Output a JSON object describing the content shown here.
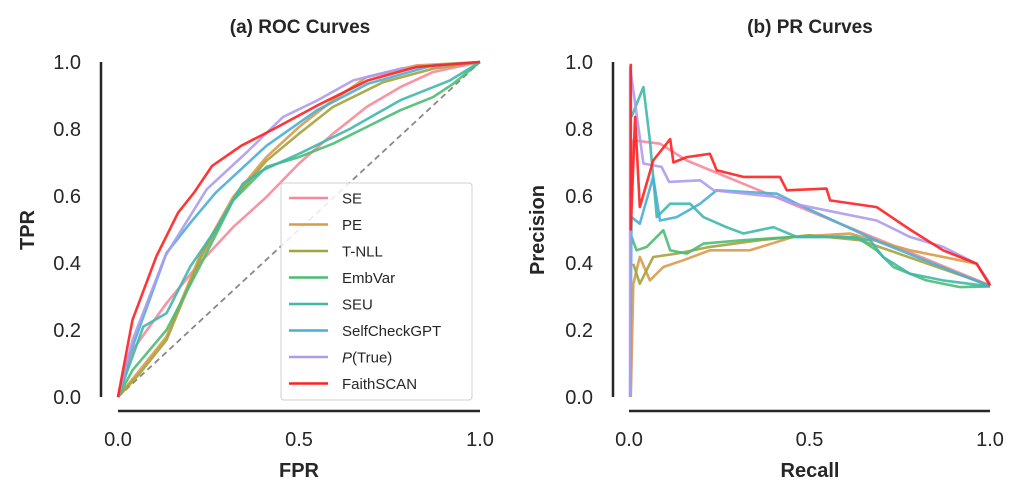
{
  "chart_data": [
    {
      "type": "line",
      "title": "(a) ROC Curves",
      "xlabel": "FPR",
      "ylabel": "TPR",
      "xlim": [
        0,
        1
      ],
      "ylim": [
        0,
        1
      ],
      "xticks": [
        "0.0",
        "0.5",
        "1.0"
      ],
      "yticks": [
        "0.0",
        "0.2",
        "0.4",
        "0.6",
        "0.8",
        "1.0"
      ],
      "grid": false,
      "legend_position": "lower-right",
      "reference_line": {
        "style": "dashed",
        "color": "#888888",
        "points": [
          [
            0,
            0
          ],
          [
            1,
            1
          ]
        ]
      },
      "series": [
        {
          "name": "SE",
          "color": "#f7889a",
          "points": [
            [
              0,
              0
            ],
            [
              0.04,
              0.14
            ],
            [
              0.134,
              0.28
            ],
            [
              0.226,
              0.4
            ],
            [
              0.318,
              0.507
            ],
            [
              0.41,
              0.597
            ],
            [
              0.5,
              0.697
            ],
            [
              0.594,
              0.786
            ],
            [
              0.687,
              0.866
            ],
            [
              0.78,
              0.925
            ],
            [
              0.87,
              0.97
            ],
            [
              1,
              1
            ]
          ]
        },
        {
          "name": "PE",
          "color": "#d99a4a",
          "points": [
            [
              0,
              0
            ],
            [
              0.06,
              0.08
            ],
            [
              0.134,
              0.18
            ],
            [
              0.226,
              0.42
            ],
            [
              0.318,
              0.597
            ],
            [
              0.41,
              0.716
            ],
            [
              0.5,
              0.806
            ],
            [
              0.594,
              0.886
            ],
            [
              0.687,
              0.955
            ],
            [
              0.825,
              0.99
            ],
            [
              1,
              1
            ]
          ]
        },
        {
          "name": "T-NLL",
          "color": "#a5a33d",
          "points": [
            [
              0,
              0
            ],
            [
              0.06,
              0.07
            ],
            [
              0.134,
              0.17
            ],
            [
              0.226,
              0.41
            ],
            [
              0.318,
              0.59
            ],
            [
              0.41,
              0.705
            ],
            [
              0.5,
              0.786
            ],
            [
              0.594,
              0.866
            ],
            [
              0.733,
              0.94
            ],
            [
              0.87,
              0.98
            ],
            [
              1,
              1
            ]
          ]
        },
        {
          "name": "EmbVar",
          "color": "#4dbb73",
          "points": [
            [
              0,
              0
            ],
            [
              0.04,
              0.08
            ],
            [
              0.134,
              0.2
            ],
            [
              0.226,
              0.39
            ],
            [
              0.318,
              0.587
            ],
            [
              0.41,
              0.687
            ],
            [
              0.5,
              0.716
            ],
            [
              0.594,
              0.756
            ],
            [
              0.687,
              0.806
            ],
            [
              0.78,
              0.856
            ],
            [
              0.87,
              0.895
            ],
            [
              0.926,
              0.935
            ],
            [
              1,
              1
            ]
          ]
        },
        {
          "name": "SEU",
          "color": "#3fb8ab",
          "points": [
            [
              0,
              0
            ],
            [
              0.07,
              0.21
            ],
            [
              0.134,
              0.25
            ],
            [
              0.2,
              0.39
            ],
            [
              0.27,
              0.5
            ],
            [
              0.345,
              0.637
            ],
            [
              0.4,
              0.677
            ],
            [
              0.5,
              0.726
            ],
            [
              0.64,
              0.8
            ],
            [
              0.78,
              0.886
            ],
            [
              0.917,
              0.945
            ],
            [
              1,
              1
            ]
          ]
        },
        {
          "name": "SelfCheckGPT",
          "color": "#4aaed4",
          "points": [
            [
              0,
              0
            ],
            [
              0.03,
              0.12
            ],
            [
              0.134,
              0.43
            ],
            [
              0.2,
              0.52
            ],
            [
              0.27,
              0.61
            ],
            [
              0.41,
              0.75
            ],
            [
              0.55,
              0.856
            ],
            [
              0.69,
              0.935
            ],
            [
              0.87,
              0.99
            ],
            [
              1,
              1
            ]
          ]
        },
        {
          "name": "P(True)",
          "color": "#ae9bf0",
          "points": [
            [
              0,
              0
            ],
            [
              0.04,
              0.17
            ],
            [
              0.13,
              0.42
            ],
            [
              0.245,
              0.62
            ],
            [
              0.355,
              0.73
            ],
            [
              0.456,
              0.836
            ],
            [
              0.55,
              0.885
            ],
            [
              0.65,
              0.945
            ],
            [
              0.78,
              0.98
            ],
            [
              1,
              1
            ]
          ]
        },
        {
          "name": "FaithSCAN",
          "color": "#ff2020",
          "points": [
            [
              0,
              0
            ],
            [
              0.04,
              0.23
            ],
            [
              0.106,
              0.42
            ],
            [
              0.166,
              0.55
            ],
            [
              0.21,
              0.61
            ],
            [
              0.26,
              0.69
            ],
            [
              0.34,
              0.75
            ],
            [
              0.43,
              0.8
            ],
            [
              0.55,
              0.87
            ],
            [
              0.69,
              0.945
            ],
            [
              0.825,
              0.985
            ],
            [
              1,
              1
            ]
          ]
        }
      ]
    },
    {
      "type": "line",
      "title": "(b) PR Curves",
      "xlabel": "Recall",
      "ylabel": "Precision",
      "xlim": [
        0,
        1
      ],
      "ylim": [
        0,
        1
      ],
      "xticks": [
        "0.0",
        "0.5",
        "1.0"
      ],
      "yticks": [
        "0.0",
        "0.2",
        "0.4",
        "0.6",
        "0.8",
        "1.0"
      ],
      "grid": false,
      "series": [
        {
          "name": "SE",
          "color": "#f7889a",
          "points": [
            [
              0.005,
              0.6
            ],
            [
              0.012,
              0.766
            ],
            [
              0.086,
              0.756
            ],
            [
              0.16,
              0.706
            ],
            [
              1,
              0.333
            ]
          ]
        },
        {
          "name": "PE",
          "color": "#d99a4a",
          "points": [
            [
              0.005,
              0.0
            ],
            [
              0.012,
              0.338
            ],
            [
              0.03,
              0.418
            ],
            [
              0.058,
              0.348
            ],
            [
              0.095,
              0.388
            ],
            [
              0.15,
              0.408
            ],
            [
              0.224,
              0.438
            ],
            [
              0.335,
              0.438
            ],
            [
              0.455,
              0.478
            ],
            [
              0.612,
              0.488
            ],
            [
              0.778,
              0.438
            ],
            [
              0.963,
              0.398
            ],
            [
              1,
              0.338
            ]
          ]
        },
        {
          "name": "T-NLL",
          "color": "#a5a33d",
          "points": [
            [
              0.012,
              0.398
            ],
            [
              0.03,
              0.338
            ],
            [
              0.067,
              0.418
            ],
            [
              0.132,
              0.428
            ],
            [
              0.224,
              0.448
            ],
            [
              0.363,
              0.468
            ],
            [
              0.5,
              0.483
            ],
            [
              0.64,
              0.468
            ],
            [
              1,
              0.333
            ]
          ]
        },
        {
          "name": "EmbVar",
          "color": "#4dbb73",
          "points": [
            [
              0.007,
              0.478
            ],
            [
              0.021,
              0.438
            ],
            [
              0.049,
              0.448
            ],
            [
              0.095,
              0.498
            ],
            [
              0.114,
              0.438
            ],
            [
              0.16,
              0.428
            ],
            [
              0.206,
              0.458
            ],
            [
              0.317,
              0.468
            ],
            [
              0.455,
              0.478
            ],
            [
              0.63,
              0.478
            ],
            [
              0.686,
              0.438
            ],
            [
              0.732,
              0.388
            ],
            [
              0.824,
              0.348
            ],
            [
              0.917,
              0.328
            ],
            [
              1,
              0.33
            ]
          ]
        },
        {
          "name": "SEU",
          "color": "#3fb8ab",
          "points": [
            [
              0.007,
              0.836
            ],
            [
              0.04,
              0.925
            ],
            [
              0.058,
              0.766
            ],
            [
              0.077,
              0.537
            ],
            [
              0.114,
              0.577
            ],
            [
              0.169,
              0.577
            ],
            [
              0.206,
              0.537
            ],
            [
              0.27,
              0.507
            ],
            [
              0.317,
              0.488
            ],
            [
              0.4,
              0.507
            ],
            [
              0.465,
              0.478
            ],
            [
              0.594,
              0.478
            ],
            [
              0.668,
              0.468
            ],
            [
              0.704,
              0.418
            ],
            [
              0.778,
              0.368
            ],
            [
              0.87,
              0.348
            ],
            [
              1,
              0.33
            ]
          ]
        },
        {
          "name": "SelfCheckGPT",
          "color": "#4aaed4",
          "points": [
            [
              0.003,
              0.0
            ],
            [
              0.007,
              0.537
            ],
            [
              0.03,
              0.517
            ],
            [
              0.067,
              0.657
            ],
            [
              0.086,
              0.527
            ],
            [
              0.132,
              0.537
            ],
            [
              0.197,
              0.577
            ],
            [
              0.243,
              0.617
            ],
            [
              0.41,
              0.607
            ],
            [
              0.465,
              0.577
            ],
            [
              0.7,
              0.46
            ],
            [
              1,
              0.33
            ]
          ]
        },
        {
          "name": "P(True)",
          "color": "#ae9bf0",
          "points": [
            [
              0.003,
              0.0
            ],
            [
              0.003,
              0.985
            ],
            [
              0.04,
              0.697
            ],
            [
              0.09,
              0.687
            ],
            [
              0.111,
              0.642
            ],
            [
              0.197,
              0.647
            ],
            [
              0.235,
              0.617
            ],
            [
              0.41,
              0.597
            ],
            [
              0.455,
              0.577
            ],
            [
              0.594,
              0.547
            ],
            [
              0.686,
              0.527
            ],
            [
              0.778,
              0.478
            ],
            [
              0.87,
              0.448
            ],
            [
              0.963,
              0.398
            ],
            [
              1,
              0.338
            ]
          ]
        },
        {
          "name": "FaithSCAN",
          "color": "#ff2020",
          "points": [
            [
              0.005,
              0.995
            ],
            [
              0.005,
              0.5
            ],
            [
              0.017,
              0.836
            ],
            [
              0.03,
              0.567
            ],
            [
              0.067,
              0.706
            ],
            [
              0.114,
              0.77
            ],
            [
              0.123,
              0.7
            ],
            [
              0.16,
              0.716
            ],
            [
              0.224,
              0.726
            ],
            [
              0.243,
              0.677
            ],
            [
              0.317,
              0.657
            ],
            [
              0.418,
              0.657
            ],
            [
              0.437,
              0.617
            ],
            [
              0.547,
              0.622
            ],
            [
              0.557,
              0.587
            ],
            [
              0.686,
              0.567
            ],
            [
              0.778,
              0.5
            ],
            [
              0.87,
              0.438
            ],
            [
              0.963,
              0.398
            ],
            [
              1,
              0.333
            ]
          ]
        }
      ]
    }
  ]
}
